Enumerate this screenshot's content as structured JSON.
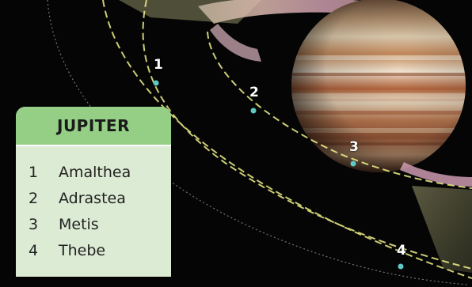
{
  "scene": {
    "moon_labels": [
      "1",
      "2",
      "3",
      "4"
    ],
    "colors": {
      "space": "#050505",
      "orbit_dash": "#f0f08a",
      "moon_dot": "#5fc9c4",
      "legend_bg": "#dcebd4",
      "legend_header_bg": "#95cf86"
    }
  },
  "legend": {
    "title": "JUPITER",
    "items": [
      {
        "num": "1",
        "name": "Amalthea"
      },
      {
        "num": "2",
        "name": "Adrastea"
      },
      {
        "num": "3",
        "name": "Metis"
      },
      {
        "num": "4",
        "name": "Thebe"
      }
    ]
  }
}
